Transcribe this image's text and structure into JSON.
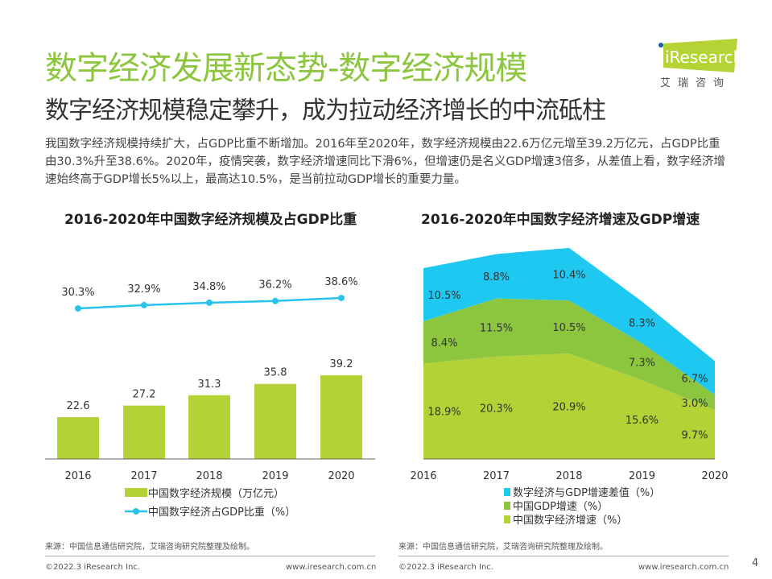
{
  "header": {
    "title": "数字经济发展新态势-数字经济规模",
    "subtitle": "数字经济规模稳定攀升，成为拉动经济增长的中流砥柱",
    "intro": "我国数字经济规模持续扩大，占GDP比重不断增加。2016年至2020年，数字经济规模由22.6万亿元增至39.2万亿元，占GDP比重由30.3%升至38.6%。2020年，疫情突袭，数字经济增速同比下滑6%，但增速仍是名义GDP增速3倍多，从差值上看，数字经济增速始终高于GDP增长5%以上，最高达10.5%，是当前拉动GDP增长的重要力量。"
  },
  "logo": {
    "text": "iResearch",
    "sub": "艾瑞咨询",
    "color": "#b5d334"
  },
  "chart_data": [
    {
      "type": "bar+line",
      "title": "2016-2020年中国数字经济规模及占GDP比重",
      "categories": [
        "2016",
        "2017",
        "2018",
        "2019",
        "2020"
      ],
      "series": [
        {
          "name": "中国数字经济规模（万亿元）",
          "type": "bar",
          "values": [
            22.6,
            27.2,
            31.3,
            35.8,
            39.2
          ],
          "labels": [
            "22.6",
            "27.2",
            "31.3",
            "35.8",
            "39.2"
          ],
          "color": "#b2d235"
        },
        {
          "name": "中国数字经济占GDP比重（%）",
          "type": "line",
          "values": [
            30.3,
            32.9,
            34.8,
            36.2,
            38.6
          ],
          "labels": [
            "30.3%",
            "32.9%",
            "34.8%",
            "36.2%",
            "38.6%"
          ],
          "color": "#29c4ec"
        }
      ],
      "legend": "bottom",
      "grid": false
    },
    {
      "type": "area",
      "stacked": true,
      "title": "2016-2020年中国数字经济增速及GDP增速",
      "categories": [
        "2016",
        "2017",
        "2018",
        "2019",
        "2020"
      ],
      "series": [
        {
          "name": "中国数字经济增速（%）",
          "values": [
            18.9,
            20.3,
            20.9,
            15.6,
            9.7
          ],
          "labels": [
            "18.9%",
            "20.3%",
            "20.9%",
            "15.6%",
            "9.7%"
          ],
          "color": "#b2d235"
        },
        {
          "name": "中国GDP增速（%）",
          "values": [
            8.4,
            11.5,
            10.5,
            7.3,
            3.0
          ],
          "labels": [
            "8.4%",
            "11.5%",
            "10.5%",
            "7.3%",
            "3.0%"
          ],
          "color": "#8cc63f"
        },
        {
          "name": "数字经济与GDP增速差值（%）",
          "values": [
            10.5,
            8.8,
            10.4,
            8.3,
            6.7
          ],
          "labels": [
            "10.5%",
            "8.8%",
            "10.4%",
            "8.3%",
            "6.7%"
          ],
          "color": "#1ec8f0"
        }
      ],
      "legend_order": [
        2,
        1,
        0
      ],
      "legend": "bottom",
      "grid": false
    }
  ],
  "footer": {
    "source": "来源：中国信息通信研究院，艾瑞咨询研究院整理及绘制。",
    "copyright": "©2022.3 iResearch Inc.",
    "website": "www.iresearch.com.cn",
    "page": "4"
  }
}
